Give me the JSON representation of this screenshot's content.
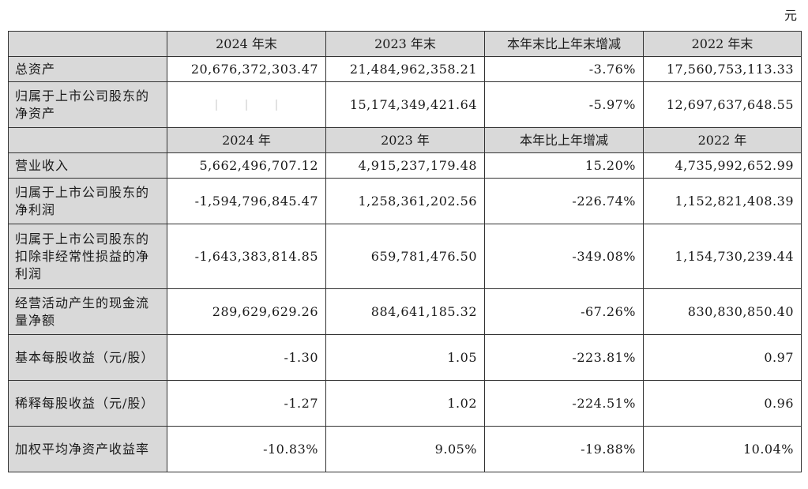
{
  "unit_label": "元",
  "header1": [
    "2024 年末",
    "2023 年末",
    "本年末比上年末增减",
    "2022 年末"
  ],
  "header2": [
    "2024 年",
    "2023 年",
    "本年比上年增减",
    "2022 年"
  ],
  "rows": [
    {
      "label": "总资产",
      "values": [
        "20,676,372,303.47",
        "21,484,962,358.21",
        "-3.76%",
        "17,560,753,113.33"
      ]
    },
    {
      "label": "归属于上市公司股东的净资产",
      "values": [
        "",
        "15,174,349,421.64",
        "-5.97%",
        "12,697,637,648.55"
      ]
    },
    {
      "label": "营业收入",
      "values": [
        "5,662,496,707.12",
        "4,915,237,179.48",
        "15.20%",
        "4,735,992,652.99"
      ]
    },
    {
      "label": "归属于上市公司股东的净利润",
      "values": [
        "-1,594,796,845.47",
        "1,258,361,202.56",
        "-226.74%",
        "1,152,821,408.39"
      ]
    },
    {
      "label": "归属于上市公司股东的扣除非经常性损益的净利润",
      "values": [
        "-1,643,383,814.85",
        "659,781,476.50",
        "-349.08%",
        "1,154,730,239.44"
      ]
    },
    {
      "label": "经营活动产生的现金流量净额",
      "values": [
        "289,629,629.26",
        "884,641,185.32",
        "-67.26%",
        "830,830,850.40"
      ]
    },
    {
      "label": "基本每股收益（元/股）",
      "values": [
        "-1.30",
        "1.05",
        "-223.81%",
        "0.97"
      ]
    },
    {
      "label": "稀释每股收益（元/股）",
      "values": [
        "-1.27",
        "1.02",
        "-224.51%",
        "0.96"
      ]
    },
    {
      "label": "加权平均净资产收益率",
      "values": [
        "-10.83%",
        "9.05%",
        "-19.88%",
        "10.04%"
      ]
    }
  ]
}
